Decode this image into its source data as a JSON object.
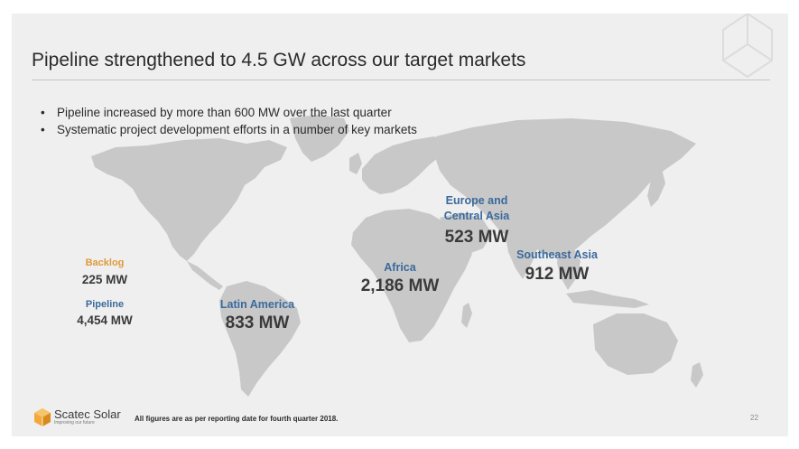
{
  "slide": {
    "title": "Pipeline strengthened to 4.5 GW across our target markets",
    "bullets": [
      "Pipeline increased by more than 600 MW over the last quarter",
      "Systematic project development efforts in a number of key markets"
    ]
  },
  "summary": {
    "backlog_label": "Backlog",
    "backlog_value": "225 MW",
    "pipeline_label": "Pipeline",
    "pipeline_value": "4,454 MW"
  },
  "regions": {
    "europe": {
      "label_line1": "Europe and",
      "label_line2": "Central Asia",
      "value": "523 MW"
    },
    "africa": {
      "label": "Africa",
      "value": "2,186 MW"
    },
    "latam": {
      "label": "Latin America",
      "value": "833 MW"
    },
    "seasia": {
      "label": "Southeast Asia",
      "value": "912 MW"
    }
  },
  "footer": {
    "logo_name": "Scatec Solar",
    "logo_tagline": "Improving our future",
    "footnote": "All figures are as per reporting date for fourth quarter 2018.",
    "page_number": "22"
  },
  "colors": {
    "region_label": "#3a6a9c",
    "backlog_label": "#e09a3a",
    "map_fill": "#c8c8c8",
    "slide_bg": "#efefef"
  }
}
